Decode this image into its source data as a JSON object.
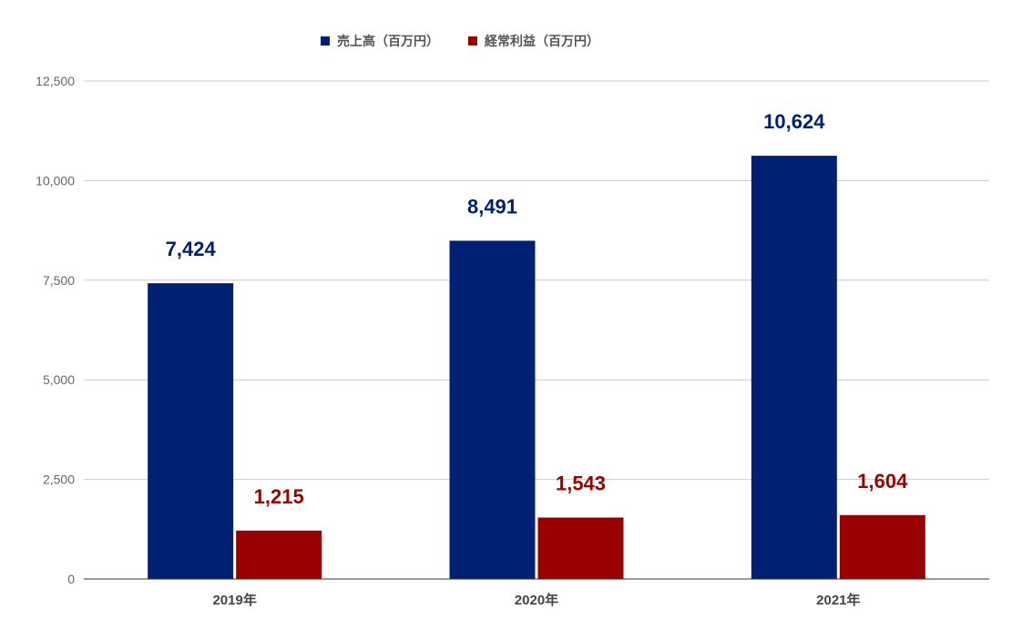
{
  "chart_data": {
    "type": "bar",
    "categories": [
      "2019年",
      "2020年",
      "2021年"
    ],
    "series": [
      {
        "name": "売上高（百万円）",
        "color": "#002074",
        "values": [
          7424,
          8491,
          10624
        ],
        "labels": [
          "7,424",
          "8,491",
          "10,624"
        ]
      },
      {
        "name": "経常利益（百万円）",
        "color": "#990000",
        "values": [
          1215,
          1543,
          1604
        ],
        "labels": [
          "1,215",
          "1,543",
          "1,604"
        ]
      }
    ],
    "ylim": [
      0,
      12500
    ],
    "yticks": [
      0,
      2500,
      5000,
      7500,
      10000,
      12500
    ],
    "ytick_labels": [
      "0",
      "2,500",
      "5,000",
      "7,500",
      "10,000",
      "12,500"
    ],
    "grid": true,
    "legend_position": "top",
    "title": "",
    "xlabel": "",
    "ylabel": ""
  }
}
